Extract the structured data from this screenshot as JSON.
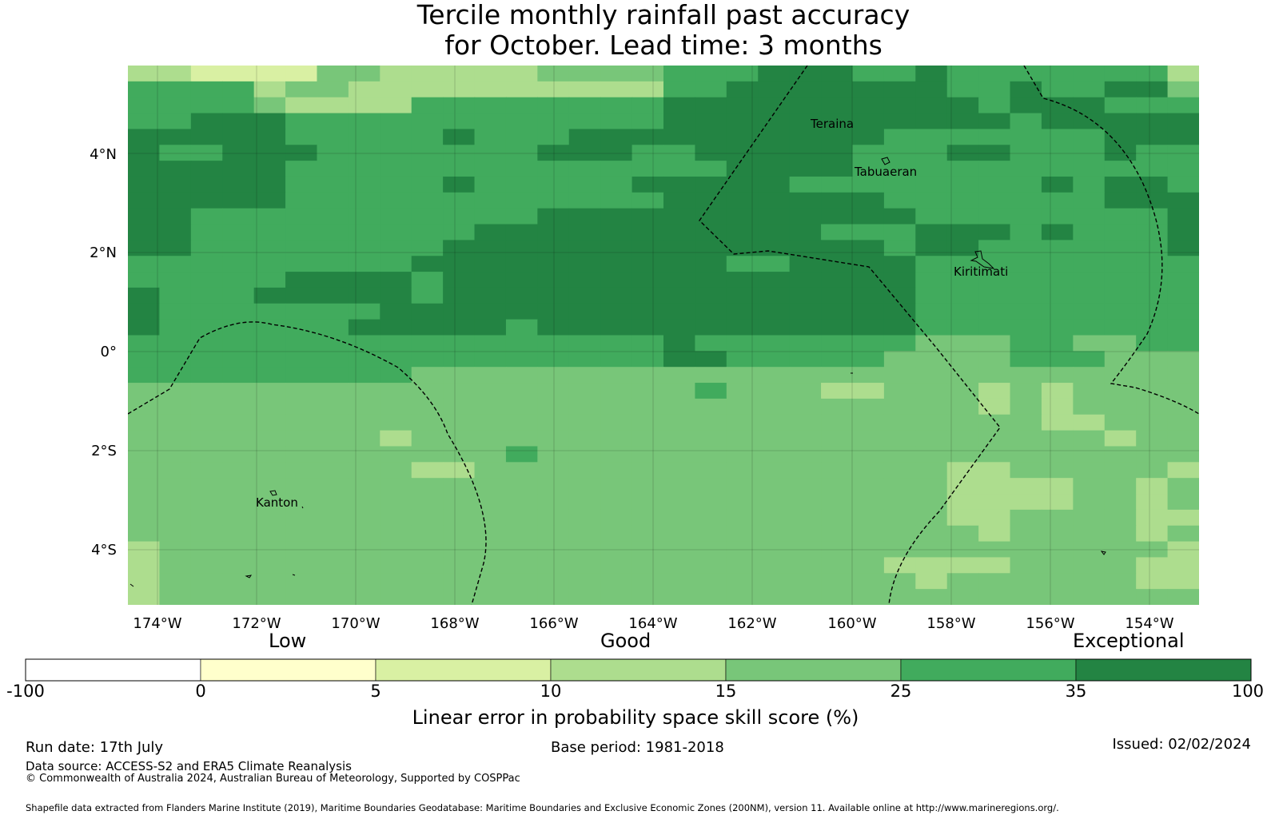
{
  "title": {
    "line1": "Tercile monthly rainfall past accuracy",
    "line2": "for October. Lead time: 3 months"
  },
  "map": {
    "lat_labels": [
      "4°N",
      "2°N",
      "0°",
      "2°S",
      "4°S"
    ],
    "lon_labels": [
      "174°W",
      "172°W",
      "170°W",
      "168°W",
      "166°W",
      "164°W",
      "162°W",
      "160°W",
      "158°W",
      "156°W",
      "154°W"
    ],
    "place_labels": [
      "Teraina",
      "Tabuaeran",
      "Kiritimati",
      "Kanton"
    ],
    "palette": [
      "#ffffff",
      "#ffffcc",
      "#d9f0a3",
      "#addd8e",
      "#78c679",
      "#41ab5d",
      "#238443"
    ],
    "grid": [
      "3322224433333444455566655655555553",
      "5555344333333333355666666655655664",
      "5555433335555555566666666665666555",
      "5566655555555555566666666666566666",
      "6666655555655566666666665555555666",
      "6556665555555666556666655566555655",
      "6666655555555555555666655555555555",
      "6666655555655555666665555555565665",
      "6666655555555555566666665555555666",
      "6655555555555666666666666555555556",
      "6655555555566666666666555666565556",
      "6655555555666666666666665665555556",
      "5555555556666666666556666555555555",
      "5555566665666666666666666555555555",
      "6555666665666666666666666555555555",
      "6555555566666666666666666555555555",
      "6555555666665666666666666555555555",
      "5555555555555555565555555444554455",
      "5555555555555555566555554444555444",
      "5555555554444444444444444444444444",
      "4444444444444444445444334443434444",
      "4444444444444444444444444443434444",
      "4444444444444444444444444444433444",
      "4444444434444444444444444444444344",
      "4444444444445444444444444444444444",
      "4444444443344444444444444433444443",
      "4444444444444444444444444433334434",
      "4444444444444444444444444433334434",
      "4444444444444444444444444433444433",
      "4444444444444444444444444443444434",
      "3444444444444444444444444444444443",
      "3444444444444444444444443333444433",
      "3444444444444444444444444344444433",
      "3444444444444444444444444444444444"
    ]
  },
  "colorbar": {
    "category_labels": [
      "Low",
      "Good",
      "Exceptional"
    ],
    "ticks": [
      "-100",
      "0",
      "5",
      "10",
      "15",
      "25",
      "35",
      "100"
    ],
    "colors": [
      "#ffffff",
      "#ffffcc",
      "#d9f0a3",
      "#addd8e",
      "#78c679",
      "#41ab5d",
      "#238443"
    ],
    "title": "Linear error in probability space skill score (%)"
  },
  "footer": {
    "run_date": "Run date: 17th July",
    "base_period": "Base period: 1981-2018",
    "issued": "Issued: 02/02/2024",
    "data_source": "Data source: ACCESS-S2 and ERA5 Climate Reanalysis",
    "copyright": "© Commonwealth of Australia 2024, Australian Bureau of Meteorology, Supported by COSPPac",
    "shapefile": "Shapefile data extracted from Flanders Marine Institute (2019), Maritime Boundaries Geodatabase: Maritime Boundaries and Exclusive Economic Zones (200NM), version 11. Available online at http://www.marineregions.org/."
  }
}
